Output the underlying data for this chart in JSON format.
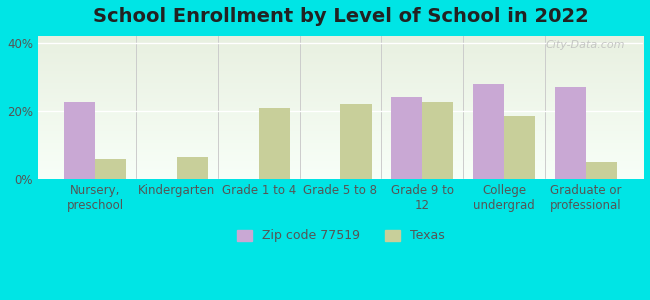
{
  "title": "School Enrollment by Level of School in 2022",
  "categories": [
    "Nursery,\npreschool",
    "Kindergarten",
    "Grade 1 to 4",
    "Grade 5 to 8",
    "Grade 9 to\n12",
    "College\nundergrad",
    "Graduate or\nprofessional"
  ],
  "zip_values": [
    22.5,
    0,
    0,
    0,
    24.0,
    28.0,
    27.0
  ],
  "texas_values": [
    6.0,
    6.5,
    21.0,
    22.0,
    22.5,
    18.5,
    5.0
  ],
  "zip_color": "#c9a8d4",
  "texas_color": "#c8cf9a",
  "background_outer": "#00e5e5",
  "background_plot_top": "#e8f0e0",
  "background_plot_bottom": "#f8fff8",
  "ylim": [
    0,
    42
  ],
  "yticks": [
    0,
    20,
    40
  ],
  "ytick_labels": [
    "0%",
    "20%",
    "40%"
  ],
  "legend_zip_label": "Zip code 77519",
  "legend_texas_label": "Texas",
  "watermark": "City-Data.com",
  "bar_width": 0.38,
  "title_fontsize": 14,
  "tick_fontsize": 8.5,
  "legend_fontsize": 9
}
